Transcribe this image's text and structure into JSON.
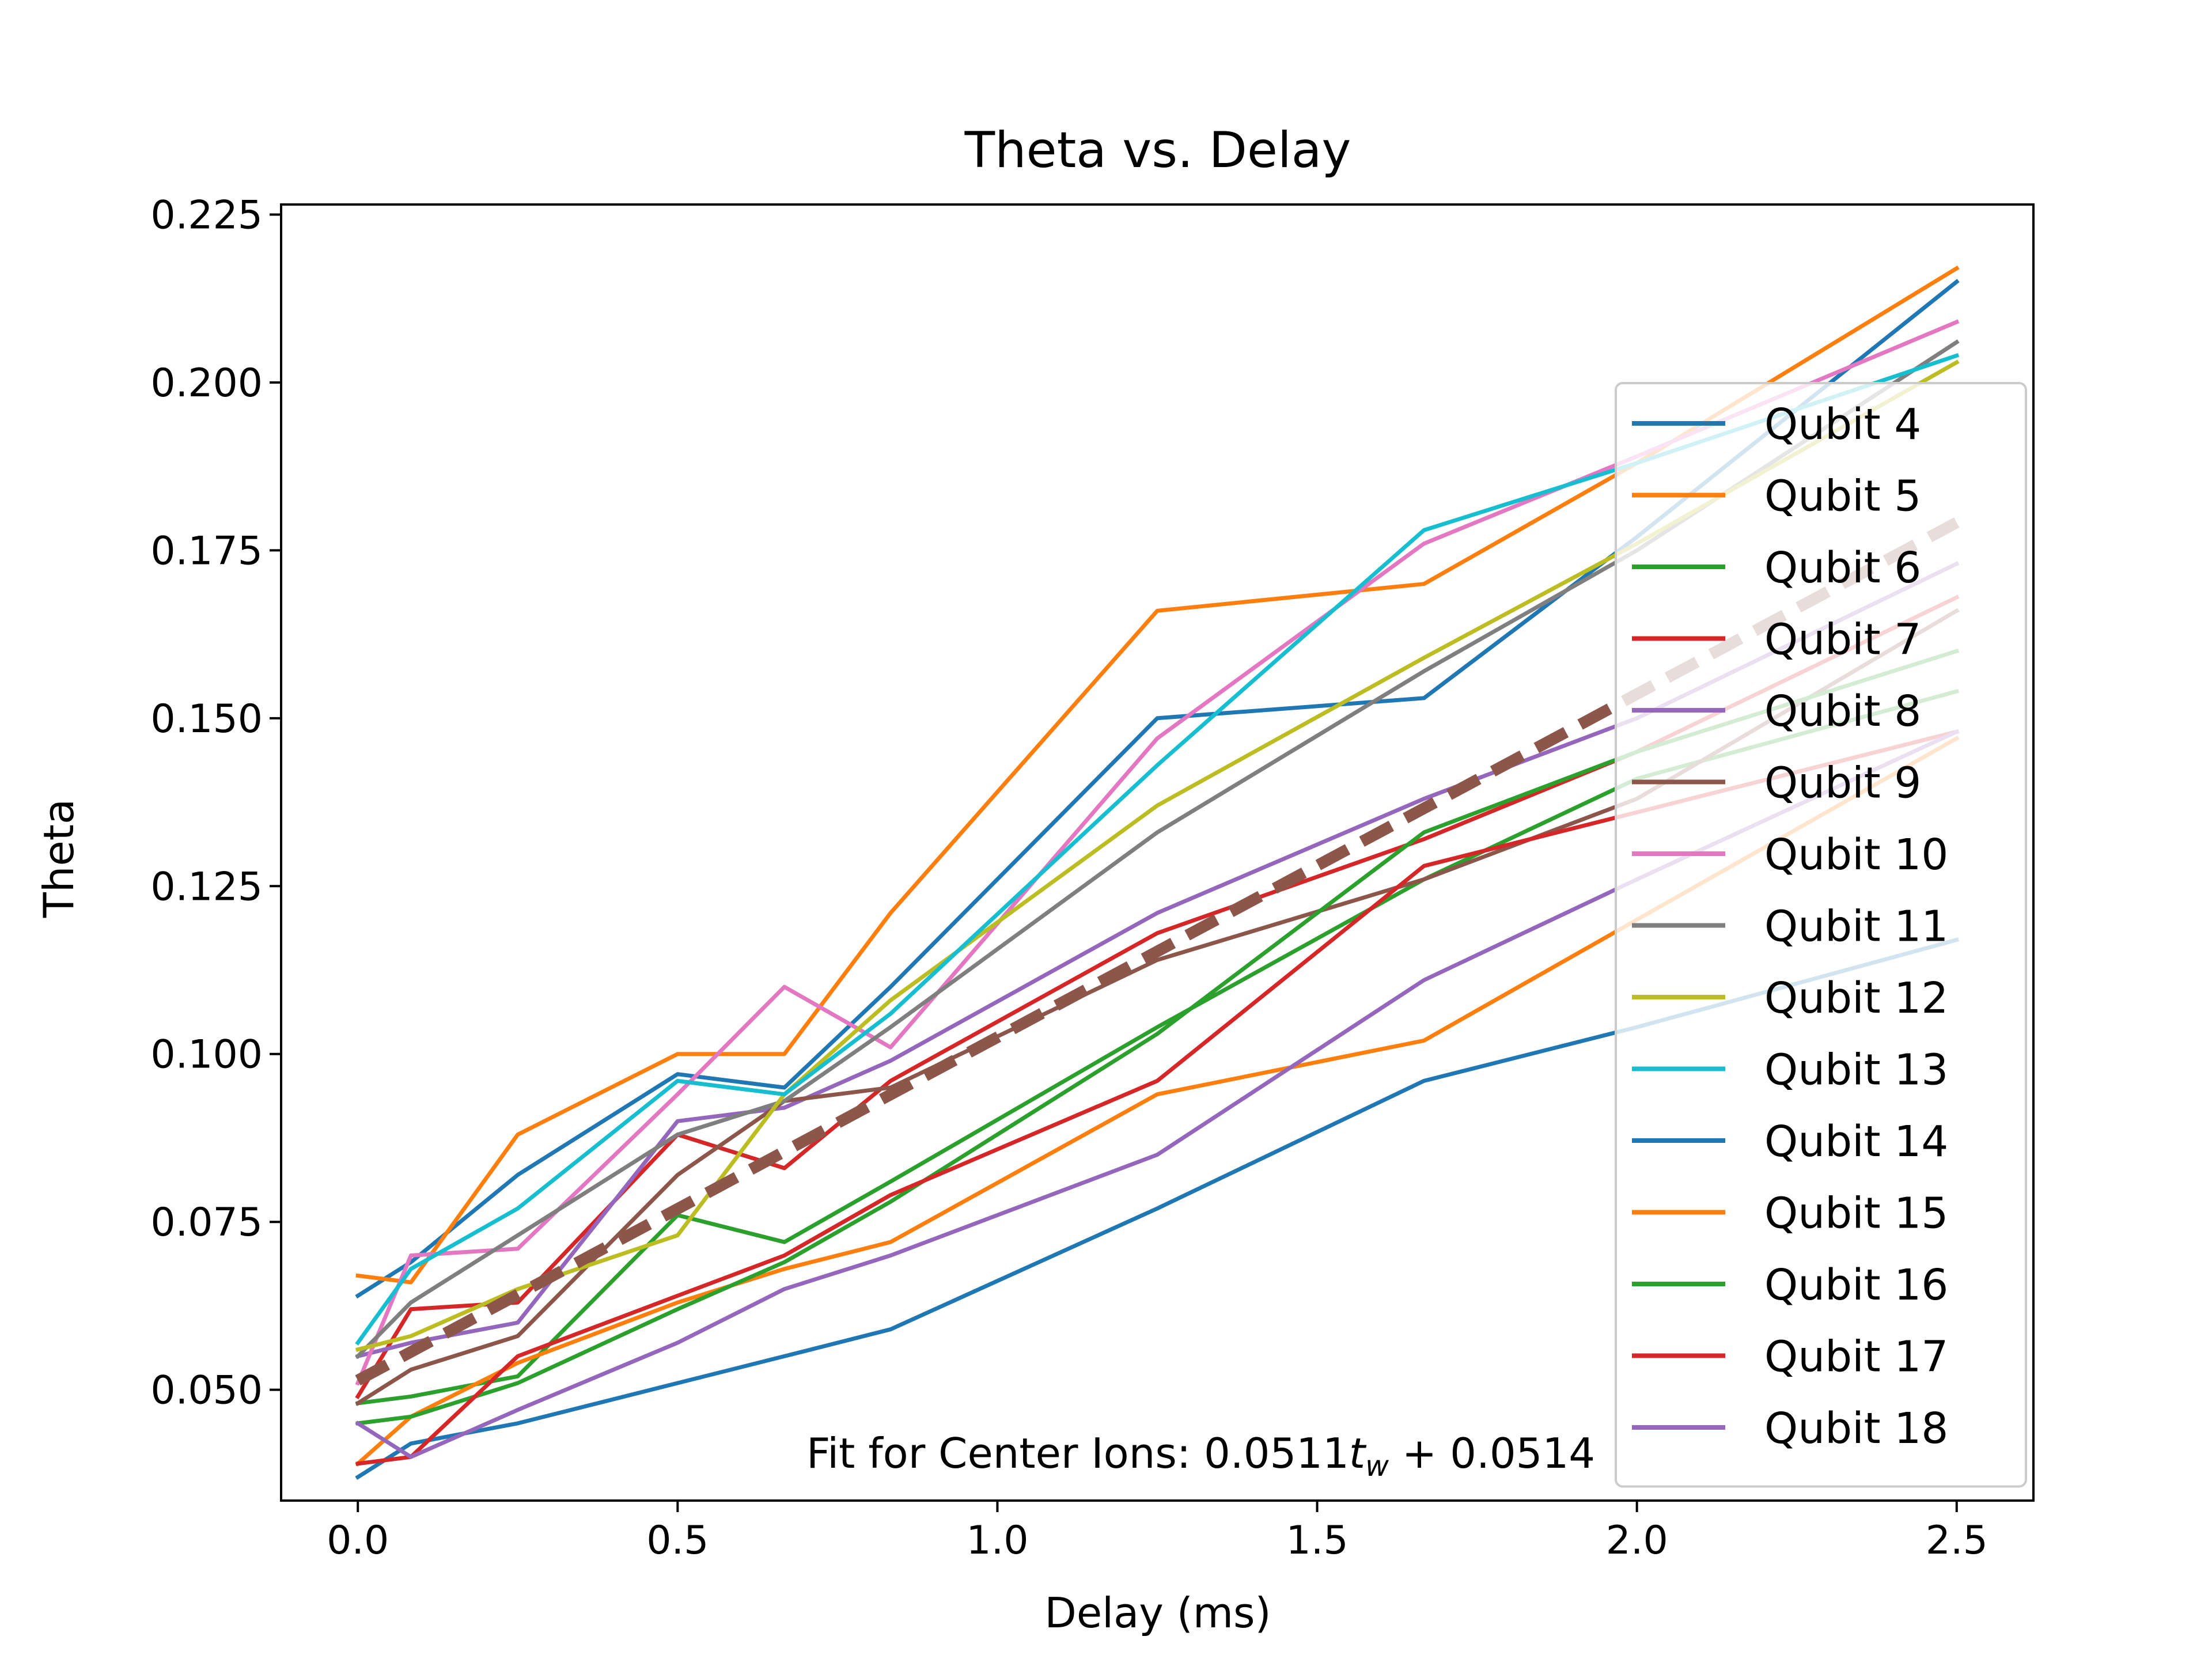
{
  "chart_data": {
    "type": "line",
    "title": "Theta vs. Delay",
    "xlabel": "Delay (ms)",
    "ylabel": "Theta",
    "xlim": [
      -0.12,
      2.62
    ],
    "ylim": [
      0.0335,
      0.2265
    ],
    "xticks": [
      "0.0",
      "0.5",
      "1.0",
      "1.5",
      "2.0",
      "2.5"
    ],
    "yticks": [
      "0.050",
      "0.075",
      "0.100",
      "0.125",
      "0.150",
      "0.175",
      "0.200",
      "0.225"
    ],
    "grid": false,
    "legend_position": "right",
    "annotation": {
      "prefix": "Fit for Center Ions: 0.0511",
      "var": "t",
      "sub": "w",
      "suffix": " + 0.0514"
    },
    "x": [
      0.0,
      0.083,
      0.25,
      0.5,
      0.667,
      0.833,
      1.25,
      1.667,
      2.0,
      2.5
    ],
    "series": [
      {
        "name": "Qubit 4",
        "color": "#1f77b4",
        "values": [
          0.064,
          0.069,
          0.082,
          0.097,
          0.095,
          0.11,
          0.15,
          0.153,
          0.177,
          0.215
        ]
      },
      {
        "name": "Qubit 5",
        "color": "#ff7f0e",
        "values": [
          0.067,
          0.066,
          0.088,
          0.1,
          0.1,
          0.121,
          0.166,
          0.17,
          0.188,
          0.217
        ]
      },
      {
        "name": "Qubit 6",
        "color": "#2ca02c",
        "values": [
          0.048,
          0.049,
          0.052,
          0.076,
          0.072,
          0.081,
          0.104,
          0.126,
          0.141,
          0.154
        ]
      },
      {
        "name": "Qubit 7",
        "color": "#d62728",
        "values": [
          0.049,
          0.062,
          0.063,
          0.088,
          0.083,
          0.096,
          0.118,
          0.132,
          0.145,
          0.168
        ]
      },
      {
        "name": "Qubit 8",
        "color": "#9467bd",
        "values": [
          0.055,
          0.057,
          0.06,
          0.09,
          0.092,
          0.099,
          0.121,
          0.138,
          0.15,
          0.173
        ]
      },
      {
        "name": "Qubit 9",
        "color": "#8c564b",
        "values": [
          0.048,
          0.053,
          0.058,
          0.082,
          0.093,
          0.095,
          0.114,
          0.126,
          0.138,
          0.166
        ]
      },
      {
        "name": "Qubit 10",
        "color": "#e377c2",
        "values": [
          0.051,
          0.07,
          0.071,
          0.094,
          0.11,
          0.101,
          0.147,
          0.176,
          0.189,
          0.209
        ]
      },
      {
        "name": "Qubit 11",
        "color": "#7f7f7f",
        "values": [
          0.055,
          0.063,
          0.073,
          0.088,
          0.093,
          0.104,
          0.133,
          0.157,
          0.175,
          0.206
        ]
      },
      {
        "name": "Qubit 12",
        "color": "#bcbd22",
        "values": [
          0.056,
          0.058,
          0.065,
          0.073,
          0.094,
          0.108,
          0.137,
          0.159,
          0.176,
          0.203
        ]
      },
      {
        "name": "Qubit 13",
        "color": "#17becf",
        "values": [
          0.057,
          0.068,
          0.077,
          0.096,
          0.094,
          0.106,
          0.143,
          0.178,
          0.188,
          0.204
        ]
      },
      {
        "name": "Qubit 14",
        "color": "#1f77b4",
        "values": [
          0.037,
          0.042,
          0.045,
          0.051,
          0.055,
          0.059,
          0.077,
          0.096,
          0.104,
          0.117
        ]
      },
      {
        "name": "Qubit 15",
        "color": "#ff7f0e",
        "values": [
          0.039,
          0.046,
          0.054,
          0.063,
          0.068,
          0.072,
          0.094,
          0.102,
          0.12,
          0.147
        ]
      },
      {
        "name": "Qubit 16",
        "color": "#2ca02c",
        "values": [
          0.045,
          0.046,
          0.051,
          0.062,
          0.069,
          0.078,
          0.103,
          0.133,
          0.145,
          0.16
        ]
      },
      {
        "name": "Qubit 17",
        "color": "#d62728",
        "values": [
          0.039,
          0.04,
          0.055,
          0.064,
          0.07,
          0.079,
          0.096,
          0.128,
          0.136,
          0.148
        ]
      },
      {
        "name": "Qubit 18",
        "color": "#9467bd",
        "values": [
          0.045,
          0.04,
          0.047,
          0.057,
          0.065,
          0.07,
          0.085,
          0.111,
          0.126,
          0.148
        ]
      }
    ],
    "fit_line": {
      "color": "#8c564b",
      "slope": 0.0511,
      "intercept": 0.0514,
      "x": [
        0.0,
        2.5
      ]
    }
  }
}
